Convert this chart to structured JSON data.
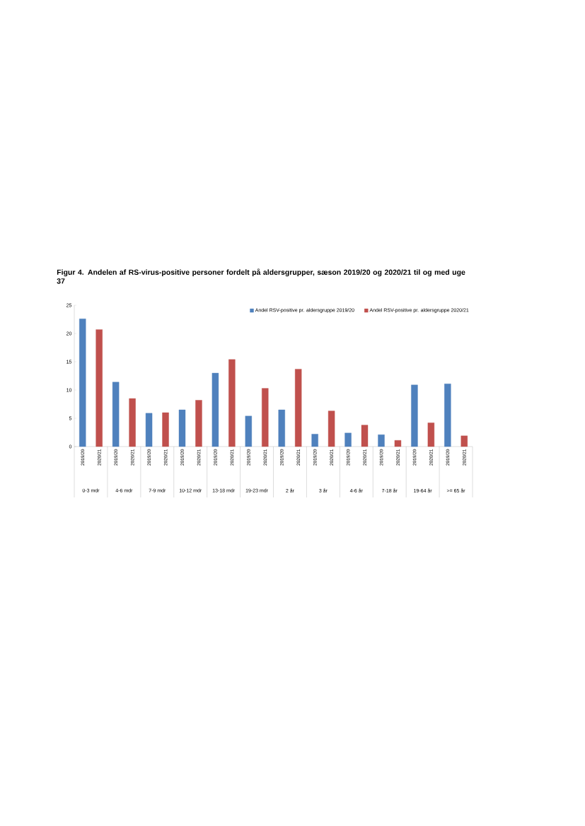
{
  "chart_data": {
    "type": "bar",
    "title": "Figur 4. Andelen af RS-virus-positive personer fordelt på aldersgrupper, sæson 2019/20 og 2020/21 til og med uge 37",
    "categories": [
      "2019/20",
      "2020/21",
      "2019/20",
      "2020/21",
      "2019/20",
      "2020/21",
      "2019/20",
      "2020/21",
      "2019/20",
      "2020/21",
      "2019/20",
      "2020/21",
      "2019/20",
      "2020/21",
      "2019/20",
      "2020/21",
      "2019/20",
      "2020/21",
      "2019/20",
      "2020/21",
      "2019/20",
      "2020/21",
      "2019/20",
      "2020/21"
    ],
    "annotations": [
      "0-3 mdr",
      "4-6 mdr",
      "7-9 mdr",
      "10-12 mdr",
      "13-18 mdr",
      "19-23 mdr",
      "2 år",
      "3 år",
      "4-6 år",
      "7-18 år",
      "19-64 år",
      ">= 65 år"
    ],
    "series": [
      {
        "name": "Andel RSV-positive pr. aldersgruppe 2019/20",
        "color": "#4f81bd",
        "values": [
          22.6,
          null,
          11.4,
          null,
          5.9,
          null,
          6.5,
          null,
          13.0,
          null,
          5.4,
          null,
          6.5,
          null,
          2.2,
          null,
          2.4,
          null,
          2.1,
          null,
          10.9,
          null,
          11.1,
          null
        ]
      },
      {
        "name": "Andel RSV-positive pr. aldersgruppe 2020/21",
        "color": "#c0504d",
        "values": [
          null,
          20.7,
          null,
          8.5,
          null,
          6.0,
          null,
          8.2,
          null,
          15.4,
          null,
          10.3,
          null,
          13.7,
          null,
          6.3,
          null,
          3.8,
          null,
          1.1,
          null,
          4.2,
          null,
          1.9
        ]
      }
    ],
    "ylim": [
      0,
      25
    ],
    "yticks": [
      0,
      5,
      10,
      15,
      20,
      25
    ],
    "grid": false,
    "legend": "top right"
  }
}
